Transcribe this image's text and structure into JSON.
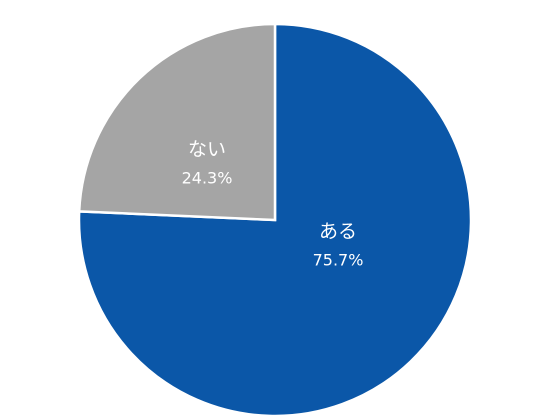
{
  "chart_data": {
    "type": "pie",
    "categories": [
      "ある",
      "ない"
    ],
    "values": [
      75.7,
      24.3
    ],
    "value_labels": [
      "75.7%",
      "24.3%"
    ],
    "colors": [
      "#0b57a8",
      "#a5a5a5"
    ]
  }
}
